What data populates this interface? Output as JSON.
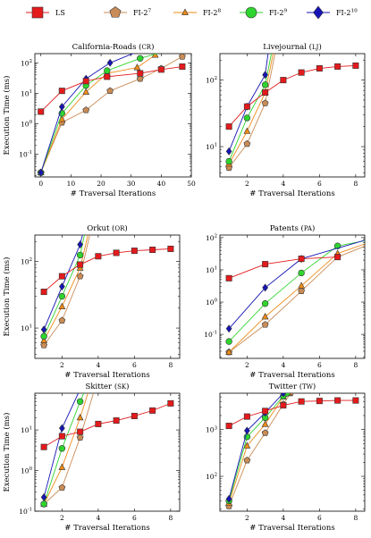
{
  "legend": [
    {
      "name": "LS",
      "color": "#e41a1c",
      "marker": "square"
    },
    {
      "name": "FI-2^7",
      "color": "#c98c56",
      "marker": "pentagon"
    },
    {
      "name": "FI-2^8",
      "color": "#ef8c1a",
      "marker": "triangle"
    },
    {
      "name": "FI-2^9",
      "color": "#2fd52f",
      "marker": "circle"
    },
    {
      "name": "FI-2^10",
      "color": "#1515b5",
      "marker": "diamond"
    }
  ],
  "chart_data": [
    {
      "type": "line",
      "title": "California-Roads (CR)",
      "xlabel": "# Traversal Iterations",
      "ylabel": "Execution Time (ms)",
      "yscale": "log",
      "xlim": [
        -2,
        50
      ],
      "ylim": [
        0.018,
        200
      ],
      "xticks": [
        0,
        10,
        20,
        30,
        40,
        50
      ],
      "yticks": [
        {
          "v": 0.1,
          "label": "10^-1"
        },
        {
          "v": 1,
          "label": "10^0"
        },
        {
          "v": 10,
          "label": "10^1"
        },
        {
          "v": 100,
          "label": "10^2"
        }
      ],
      "series": [
        {
          "name": "LS",
          "x": [
            0,
            7,
            15,
            22,
            33,
            40,
            47
          ],
          "values": [
            2.5,
            12,
            25,
            35,
            45,
            60,
            75
          ]
        },
        {
          "name": "FI-2^7",
          "x": [
            0,
            7,
            15,
            23,
            33,
            40,
            47
          ],
          "values": [
            0.025,
            1.1,
            2.8,
            12,
            30,
            65,
            160
          ]
        },
        {
          "name": "FI-2^8",
          "x": [
            0,
            7,
            15,
            22,
            32,
            38
          ],
          "values": [
            0.025,
            1.4,
            11,
            45,
            70,
            180
          ]
        },
        {
          "name": "FI-2^9",
          "x": [
            0,
            7,
            15,
            22,
            33,
            42
          ],
          "values": [
            0.025,
            2.2,
            18,
            55,
            140,
            250
          ]
        },
        {
          "name": "FI-2^10",
          "x": [
            0,
            7,
            15,
            23,
            33
          ],
          "values": [
            0.025,
            3.6,
            30,
            100,
            250
          ]
        }
      ]
    },
    {
      "type": "line",
      "title": "Livejournal (LJ)",
      "xlabel": "# Traversal Iterations",
      "ylabel": "",
      "yscale": "log",
      "xlim": [
        0.5,
        8.5
      ],
      "ylim": [
        3.5,
        250
      ],
      "xticks": [
        2,
        4,
        6,
        8
      ],
      "yticks": [
        {
          "v": 10,
          "label": "10^1"
        },
        {
          "v": 100,
          "label": "10^2"
        }
      ],
      "series": [
        {
          "name": "LS",
          "x": [
            1,
            2,
            3,
            4,
            5,
            6,
            7,
            8
          ],
          "values": [
            20,
            40,
            65,
            100,
            130,
            150,
            160,
            165
          ]
        },
        {
          "name": "FI-2^7",
          "x": [
            1,
            2,
            3,
            3.6
          ],
          "values": [
            4.8,
            11,
            45,
            300
          ]
        },
        {
          "name": "FI-2^8",
          "x": [
            1,
            2,
            3,
            3.5
          ],
          "values": [
            5.5,
            17,
            65,
            300
          ]
        },
        {
          "name": "FI-2^9",
          "x": [
            1,
            2,
            3,
            3.4
          ],
          "values": [
            6,
            27,
            85,
            300
          ]
        },
        {
          "name": "FI-2^10",
          "x": [
            1,
            2,
            3,
            3.2
          ],
          "values": [
            8.5,
            40,
            120,
            300
          ]
        }
      ]
    },
    {
      "type": "line",
      "title": "Orkut (OR)",
      "xlabel": "# Traversal Iterations",
      "ylabel": "Execution Time (ms)",
      "yscale": "log",
      "xlim": [
        0.5,
        8.5
      ],
      "ylim": [
        3.5,
        250
      ],
      "xticks": [
        2,
        4,
        6,
        8
      ],
      "yticks": [
        {
          "v": 10,
          "label": "10^1"
        },
        {
          "v": 100,
          "label": "10^2"
        }
      ],
      "series": [
        {
          "name": "LS",
          "x": [
            1,
            2,
            3,
            4,
            5,
            6,
            7,
            8
          ],
          "values": [
            35,
            60,
            90,
            120,
            135,
            145,
            150,
            155
          ]
        },
        {
          "name": "FI-2^7",
          "x": [
            1,
            2,
            3,
            3.6
          ],
          "values": [
            5.5,
            13,
            60,
            300
          ]
        },
        {
          "name": "FI-2^8",
          "x": [
            1,
            2,
            3,
            3.5
          ],
          "values": [
            6.5,
            21,
            80,
            300
          ]
        },
        {
          "name": "FI-2^9",
          "x": [
            1,
            2,
            3,
            3.3
          ],
          "values": [
            7.5,
            30,
            125,
            300
          ]
        },
        {
          "name": "FI-2^10",
          "x": [
            1,
            2,
            3,
            3.2
          ],
          "values": [
            9.5,
            42,
            180,
            300
          ]
        }
      ]
    },
    {
      "type": "line",
      "title": "Patents (PA)",
      "xlabel": "# Traversal Iterations",
      "ylabel": "",
      "yscale": "log",
      "xlim": [
        0.5,
        8.5
      ],
      "ylim": [
        0.018,
        120
      ],
      "xticks": [
        2,
        4,
        6,
        8
      ],
      "yticks": [
        {
          "v": 0.1,
          "label": "10^-1"
        },
        {
          "v": 1,
          "label": "10^0"
        },
        {
          "v": 10,
          "label": "10^1"
        },
        {
          "v": 100,
          "label": "10^2"
        }
      ],
      "series": [
        {
          "name": "LS",
          "x": [
            1,
            3,
            5,
            7
          ],
          "values": [
            5.5,
            15,
            22,
            25
          ]
        },
        {
          "name": "FI-2^7",
          "x": [
            1,
            3,
            5,
            7,
            9
          ],
          "values": [
            0.028,
            0.2,
            2.2,
            25,
            70
          ]
        },
        {
          "name": "FI-2^8",
          "x": [
            1,
            3,
            5,
            7,
            9
          ],
          "values": [
            0.028,
            0.35,
            3.2,
            32,
            80
          ]
        },
        {
          "name": "FI-2^9",
          "x": [
            1,
            3,
            5,
            7,
            9
          ],
          "values": [
            0.06,
            0.9,
            8,
            55,
            90
          ]
        },
        {
          "name": "FI-2^10",
          "x": [
            1,
            3,
            5,
            9
          ],
          "values": [
            0.15,
            2.8,
            22,
            100
          ]
        }
      ]
    },
    {
      "type": "line",
      "title": "Skitter (SK)",
      "xlabel": "# Traversal Iterations",
      "ylabel": "Execution Time (ms)",
      "yscale": "log",
      "xlim": [
        0.5,
        8.5
      ],
      "ylim": [
        0.1,
        80
      ],
      "xticks": [
        2,
        4,
        6,
        8
      ],
      "yticks": [
        {
          "v": 0.1,
          "label": "10^-1"
        },
        {
          "v": 1,
          "label": "10^0"
        },
        {
          "v": 10,
          "label": "10^1"
        }
      ],
      "series": [
        {
          "name": "LS",
          "x": [
            1,
            2,
            3,
            4,
            5,
            6,
            7,
            8
          ],
          "values": [
            3.8,
            7,
            9,
            14,
            17,
            22,
            30,
            45
          ]
        },
        {
          "name": "FI-2^7",
          "x": [
            1,
            2,
            3,
            3.8
          ],
          "values": [
            0.15,
            0.38,
            6.5,
            100
          ]
        },
        {
          "name": "FI-2^8",
          "x": [
            1,
            2,
            3,
            3.5
          ],
          "values": [
            0.15,
            1.2,
            20,
            100
          ]
        },
        {
          "name": "FI-2^9",
          "x": [
            1,
            2,
            3,
            3.3
          ],
          "values": [
            0.15,
            3.5,
            50,
            100
          ]
        },
        {
          "name": "FI-2^10",
          "x": [
            1,
            2,
            3
          ],
          "values": [
            0.22,
            11,
            100
          ]
        }
      ]
    },
    {
      "type": "line",
      "title": "Twitter (TW)",
      "xlabel": "# Traversal Iterations",
      "ylabel": "",
      "yscale": "log",
      "xlim": [
        0.5,
        8.5
      ],
      "ylim": [
        18,
        6000
      ],
      "xticks": [
        2,
        4,
        6,
        8
      ],
      "yticks": [
        {
          "v": 100,
          "label": "10^2"
        },
        {
          "v": 1000,
          "label": "10^3"
        }
      ],
      "series": [
        {
          "name": "LS",
          "x": [
            1,
            2,
            3,
            4,
            5,
            6,
            7,
            8
          ],
          "values": [
            1200,
            1900,
            2500,
            3300,
            4000,
            4100,
            4200,
            4200
          ]
        },
        {
          "name": "FI-2^7",
          "x": [
            1,
            2,
            3,
            4,
            4.4
          ],
          "values": [
            23,
            220,
            850,
            3500,
            6000
          ]
        },
        {
          "name": "FI-2^8",
          "x": [
            1,
            2,
            3,
            4,
            4.3
          ],
          "values": [
            27,
            450,
            1300,
            5000,
            6000
          ]
        },
        {
          "name": "FI-2^9",
          "x": [
            1,
            2,
            3,
            4,
            4.2
          ],
          "values": [
            30,
            700,
            1800,
            5200,
            6000
          ]
        },
        {
          "name": "FI-2^10",
          "x": [
            1,
            2,
            3,
            4
          ],
          "values": [
            33,
            950,
            2300,
            6000
          ]
        }
      ]
    }
  ]
}
